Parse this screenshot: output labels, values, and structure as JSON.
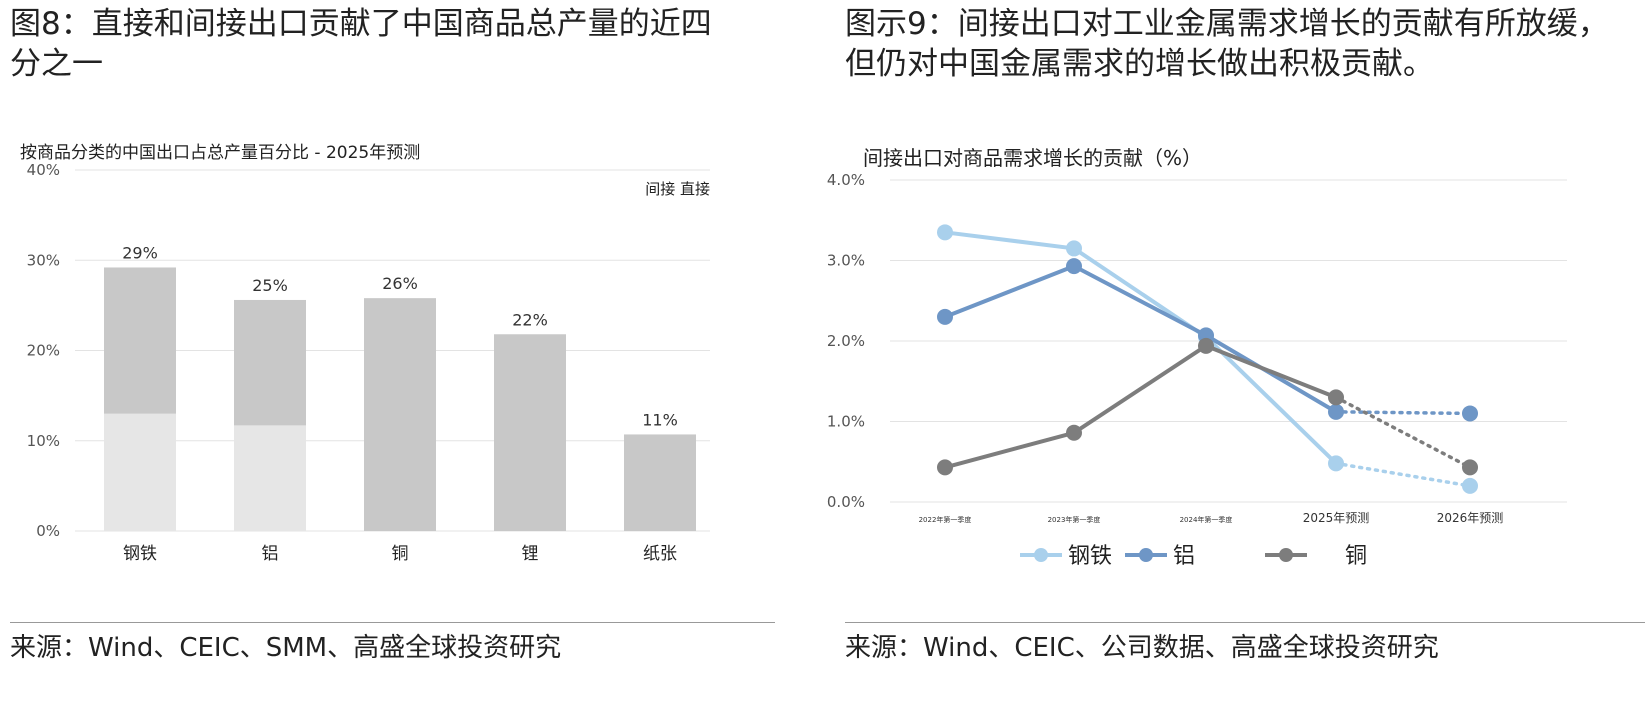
{
  "left": {
    "figure_title": "图8：直接和间接出口贡献了中国商品总产量的近四分之一",
    "source": "来源：Wind、CEIC、SMM、高盛全球投资研究"
  },
  "right": {
    "figure_title": "图示9：间接出口对工业金属需求增长的贡献有所放缓，但仍对中国金属需求的增长做出积极贡献。",
    "source": "来源：Wind、CEIC、公司数据、高盛全球投资研究"
  },
  "chart_data": [
    {
      "type": "bar",
      "title": "按商品分类的中国出口占总产量百分比 - 2025年预测",
      "categories": [
        "钢铁",
        "铝",
        "铜",
        "锂",
        "纸张"
      ],
      "series": [
        {
          "name": "间接",
          "values": [
            13,
            11.7,
            0,
            0,
            0
          ],
          "color": "#e6e6e6"
        },
        {
          "name": "直接",
          "values": [
            16.2,
            13.9,
            25.8,
            21.8,
            10.7
          ],
          "color": "#c8c8c8"
        }
      ],
      "data_labels": [
        "29%",
        "25%",
        "26%",
        "22%",
        "11%"
      ],
      "legend_text": "间接 直接",
      "y_ticks": [
        "0%",
        "10%",
        "20%",
        "30%",
        "40%"
      ],
      "ylim": [
        0,
        40
      ]
    },
    {
      "type": "line",
      "title": "间接出口对商品需求增长的贡献（%）",
      "x": [
        "2022年第一季度",
        "2023年第一季度",
        "2024年第一季度",
        "2025年预测",
        "2026年预测"
      ],
      "forecast_from_index": 3,
      "series": [
        {
          "name": "钢铁",
          "values": [
            3.35,
            3.15,
            2.05,
            0.48,
            0.2
          ],
          "color": "#a9d0ec"
        },
        {
          "name": "铝",
          "values": [
            2.3,
            2.93,
            2.07,
            1.12,
            1.1
          ],
          "color": "#6e96c6"
        },
        {
          "name": "铜",
          "values": [
            0.43,
            0.86,
            1.94,
            1.3,
            0.43
          ],
          "color": "#7d7d7d"
        }
      ],
      "y_ticks": [
        "0.0%",
        "1.0%",
        "2.0%",
        "3.0%",
        "4.0%"
      ],
      "ylim": [
        0,
        4
      ]
    }
  ]
}
